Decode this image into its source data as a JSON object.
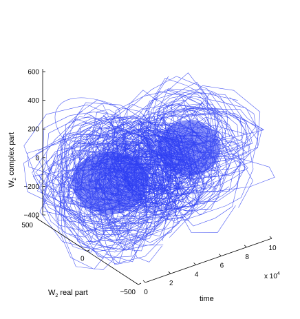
{
  "chart_data": {
    "type": "line",
    "title": "",
    "projection": "3d",
    "series_color": "#2b3cf2",
    "axes": {
      "x": {
        "label": "time",
        "range": [
          0,
          100000
        ],
        "ticks": [
          0,
          2,
          4,
          6,
          8,
          10
        ],
        "tick_labels": [
          "0",
          "2",
          "4",
          "6",
          "8",
          "10"
        ],
        "exponent_label": {
          "base": "x 10",
          "power": "4"
        }
      },
      "y": {
        "label_main": "W",
        "label_sub": "2",
        "label_rest": " real part",
        "range": [
          -500,
          500
        ],
        "ticks": [
          500,
          0,
          -500
        ],
        "tick_labels": [
          "500",
          "0",
          "−500"
        ]
      },
      "z": {
        "label_main": "W",
        "label_sub": "2",
        "label_rest": " complex part",
        "range": [
          -400,
          600
        ],
        "ticks": [
          600,
          400,
          200,
          0,
          -200,
          -400
        ],
        "tick_labels": [
          "600",
          "400",
          "200",
          "0",
          "−200",
          "−400"
        ]
      }
    },
    "trajectory": {
      "description_visible": "dense double-lobed trajectory",
      "lobes": [
        {
          "center_z": -120,
          "approx_radius": 150
        },
        {
          "center_z": 40,
          "approx_radius": 130
        }
      ]
    }
  }
}
